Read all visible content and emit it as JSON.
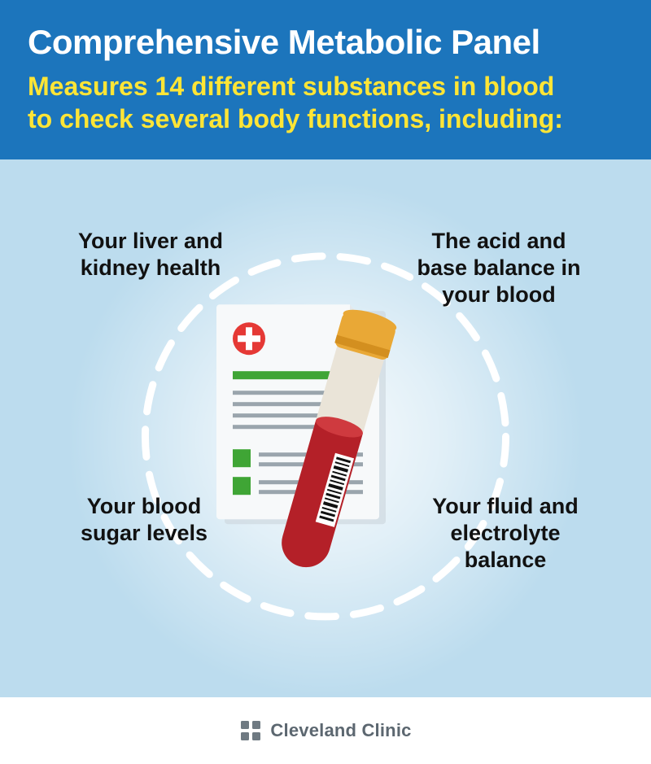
{
  "header": {
    "title": "Comprehensive Metabolic Panel",
    "subtitle": "Measures 14 different substances in blood\nto check several body functions, including:",
    "background_color": "#1c75bc",
    "title_color": "#ffffff",
    "subtitle_color": "#ffe536",
    "title_fontsize": 42,
    "subtitle_fontsize": 32
  },
  "main": {
    "background_color": "#bcdcee",
    "glow_center_color": "#ffffff",
    "dash_ring": {
      "diameter": 445,
      "stroke_color": "#ffffff",
      "stroke_width": 9,
      "dash": "34 22"
    },
    "callouts": {
      "top_left": "Your liver and\nkidney health",
      "top_right": "The acid and\nbase balance in\nyour blood",
      "bottom_left": "Your blood\nsugar levels",
      "bottom_right": "Your fluid and\nelectrolyte\nbalance",
      "color": "#111111",
      "fontsize": 27
    },
    "illustration": {
      "paper": {
        "fill": "#f7f9fa",
        "shadow": "#d6dde2",
        "cross_bg": "#e53935",
        "cross_fg": "#ffffff",
        "line_color": "#9aa5ad",
        "accent_color": "#3fa535"
      },
      "tube": {
        "cap_color": "#e9a836",
        "cap_rim": "#d38f1f",
        "glass_color": "#eae4d8",
        "blood_color": "#b42028",
        "blood_highlight": "#cf3a3f",
        "barcode_bg": "#ffffff",
        "barcode_fg": "#111111"
      }
    }
  },
  "footer": {
    "brand_text": "Cleveland Clinic",
    "brand_color": "#5c6770",
    "logo_color": "#6f7a82"
  }
}
